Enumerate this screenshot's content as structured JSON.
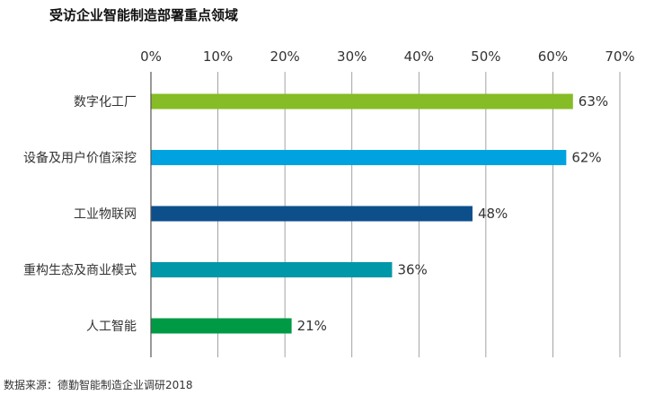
{
  "chart_data": {
    "type": "bar",
    "orientation": "horizontal",
    "title": "受访企业智能制造部署重点领域",
    "categories": [
      "数字化工厂",
      "设备及用户价值深挖",
      "工业物联网",
      "重构生态及商业模式",
      "人工智能"
    ],
    "values": [
      63,
      62,
      48,
      36,
      21
    ],
    "value_labels": [
      "63%",
      "62%",
      "48%",
      "36%",
      "21%"
    ],
    "colors": [
      "#86bc25",
      "#00a3e0",
      "#0d4f8b",
      "#0097a9",
      "#009a44"
    ],
    "x_ticks": [
      0,
      10,
      20,
      30,
      40,
      50,
      60,
      70
    ],
    "x_tick_labels": [
      "0%",
      "10%",
      "20%",
      "30%",
      "40%",
      "50%",
      "60%",
      "70%"
    ],
    "xlim": [
      0,
      70
    ],
    "xlabel": "",
    "ylabel": "",
    "grid": true,
    "legend": "none",
    "source": "数据来源：德勤智能制造企业调研2018"
  }
}
